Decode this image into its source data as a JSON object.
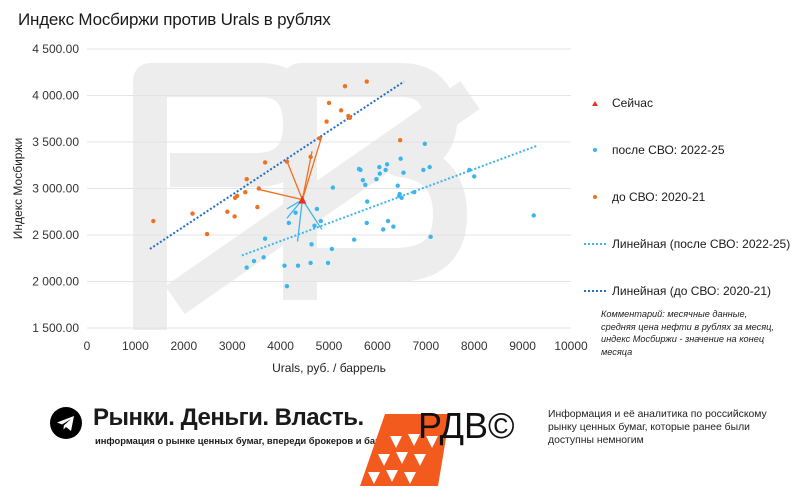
{
  "title": "Индекс Мосбиржи против Urals в рублях",
  "colors": {
    "now": "#e8321e",
    "post": "#3bb6ec",
    "pre": "#f07020",
    "post_trend": "#3bb6ec",
    "pre_trend": "#1f6fc4",
    "grid": "#e4e4e4",
    "watermark": "#ededed"
  },
  "legend": [
    {
      "label": "Сейчас",
      "type": "triangle",
      "color": "#e8321e"
    },
    {
      "label": "после СВО: 2022-25",
      "type": "dot",
      "color": "#3bb6ec"
    },
    {
      "label": "до СВО: 2020-21",
      "type": "dot",
      "color": "#f07020"
    },
    {
      "label": "Линейная (после СВО: 2022-25)",
      "type": "dotted-line",
      "color": "#3bb6ec"
    },
    {
      "label": "Линейная (до СВО: 2020-21)",
      "type": "dotted-line",
      "color": "#1f6fc4"
    }
  ],
  "comment": "Комментарий: месячные данные, средняя цена нефти в рублях за месяц, индекс Мосбиржи - значение на конец месяца",
  "chart_data": {
    "type": "scatter",
    "xlabel": "Urals, руб. / баррель",
    "ylabel": "Индекс Мосбиржи",
    "xlim": [
      0,
      10000
    ],
    "ylim": [
      1500,
      4500
    ],
    "x_ticks": [
      0,
      1000,
      2000,
      3000,
      4000,
      5000,
      6000,
      7000,
      8000,
      9000,
      10000
    ],
    "y_ticks": [
      "1 500.00",
      "2 000.00",
      "2 500.00",
      "3 000.00",
      "3 500.00",
      "4 000.00",
      "4 500.00"
    ],
    "y_tick_values": [
      1500,
      2000,
      2500,
      3000,
      3500,
      4000,
      4500
    ],
    "grid": "horizontal",
    "series": [
      {
        "name": "до СВО: 2020-21",
        "color": "#f07020",
        "points": [
          [
            1370,
            2650
          ],
          [
            2180,
            2730
          ],
          [
            2480,
            2510
          ],
          [
            2900,
            2750
          ],
          [
            3050,
            2700
          ],
          [
            3060,
            2900
          ],
          [
            3100,
            2920
          ],
          [
            3270,
            2960
          ],
          [
            3300,
            3100
          ],
          [
            3520,
            2800
          ],
          [
            3550,
            3000
          ],
          [
            3680,
            3280
          ],
          [
            4130,
            3290
          ],
          [
            4620,
            3340
          ],
          [
            4800,
            3540
          ],
          [
            4950,
            3720
          ],
          [
            5000,
            3920
          ],
          [
            5250,
            3840
          ],
          [
            5330,
            4100
          ],
          [
            5400,
            3780
          ],
          [
            5430,
            3760
          ],
          [
            5780,
            4150
          ],
          [
            6470,
            3520
          ]
        ]
      },
      {
        "name": "после СВО: 2022-25",
        "color": "#3bb6ec",
        "points": [
          [
            3300,
            2150
          ],
          [
            3450,
            2220
          ],
          [
            3650,
            2260
          ],
          [
            3680,
            2460
          ],
          [
            4080,
            2170
          ],
          [
            4130,
            1950
          ],
          [
            4170,
            2630
          ],
          [
            4310,
            2740
          ],
          [
            4360,
            2170
          ],
          [
            4620,
            2200
          ],
          [
            4640,
            2400
          ],
          [
            4700,
            2600
          ],
          [
            4750,
            2780
          ],
          [
            4830,
            2650
          ],
          [
            4980,
            2200
          ],
          [
            5060,
            2350
          ],
          [
            5080,
            3010
          ],
          [
            5520,
            2450
          ],
          [
            5620,
            3210
          ],
          [
            5650,
            3200
          ],
          [
            5700,
            3090
          ],
          [
            5750,
            3040
          ],
          [
            5780,
            2630
          ],
          [
            5790,
            2860
          ],
          [
            5980,
            3100
          ],
          [
            6040,
            3230
          ],
          [
            6050,
            3160
          ],
          [
            6120,
            2560
          ],
          [
            6170,
            3200
          ],
          [
            6200,
            3260
          ],
          [
            6220,
            2650
          ],
          [
            6330,
            2590
          ],
          [
            6420,
            3030
          ],
          [
            6450,
            2920
          ],
          [
            6460,
            2940
          ],
          [
            6480,
            3320
          ],
          [
            6500,
            2900
          ],
          [
            6540,
            3170
          ],
          [
            6760,
            2960
          ],
          [
            6950,
            3200
          ],
          [
            6980,
            3480
          ],
          [
            7080,
            3230
          ],
          [
            7100,
            2480
          ],
          [
            7900,
            3200
          ],
          [
            8000,
            3130
          ],
          [
            9230,
            2710
          ]
        ]
      },
      {
        "name": "Сейчас",
        "color": "#e8321e",
        "points": [
          [
            4450,
            2880
          ]
        ]
      }
    ],
    "trendlines": [
      {
        "name": "Линейная (после СВО: 2022-25)",
        "color": "#3bb6ec",
        "from": [
          3200,
          2280
        ],
        "to": [
          9300,
          3460
        ]
      },
      {
        "name": "Линейная (до СВО: 2020-21)",
        "color": "#1f6fc4",
        "from": [
          1300,
          2350
        ],
        "to": [
          6550,
          4150
        ]
      }
    ]
  },
  "footer": {
    "brand": "Рынки. Деньги. Власть.",
    "tagline": "информация о рынке ценных бумаг, впереди брокеров и банков.",
    "logo": "РДВ©",
    "info": "Информация и её аналитика по российскому рынку ценных бумаг, которые ранее были доступны немногим"
  }
}
